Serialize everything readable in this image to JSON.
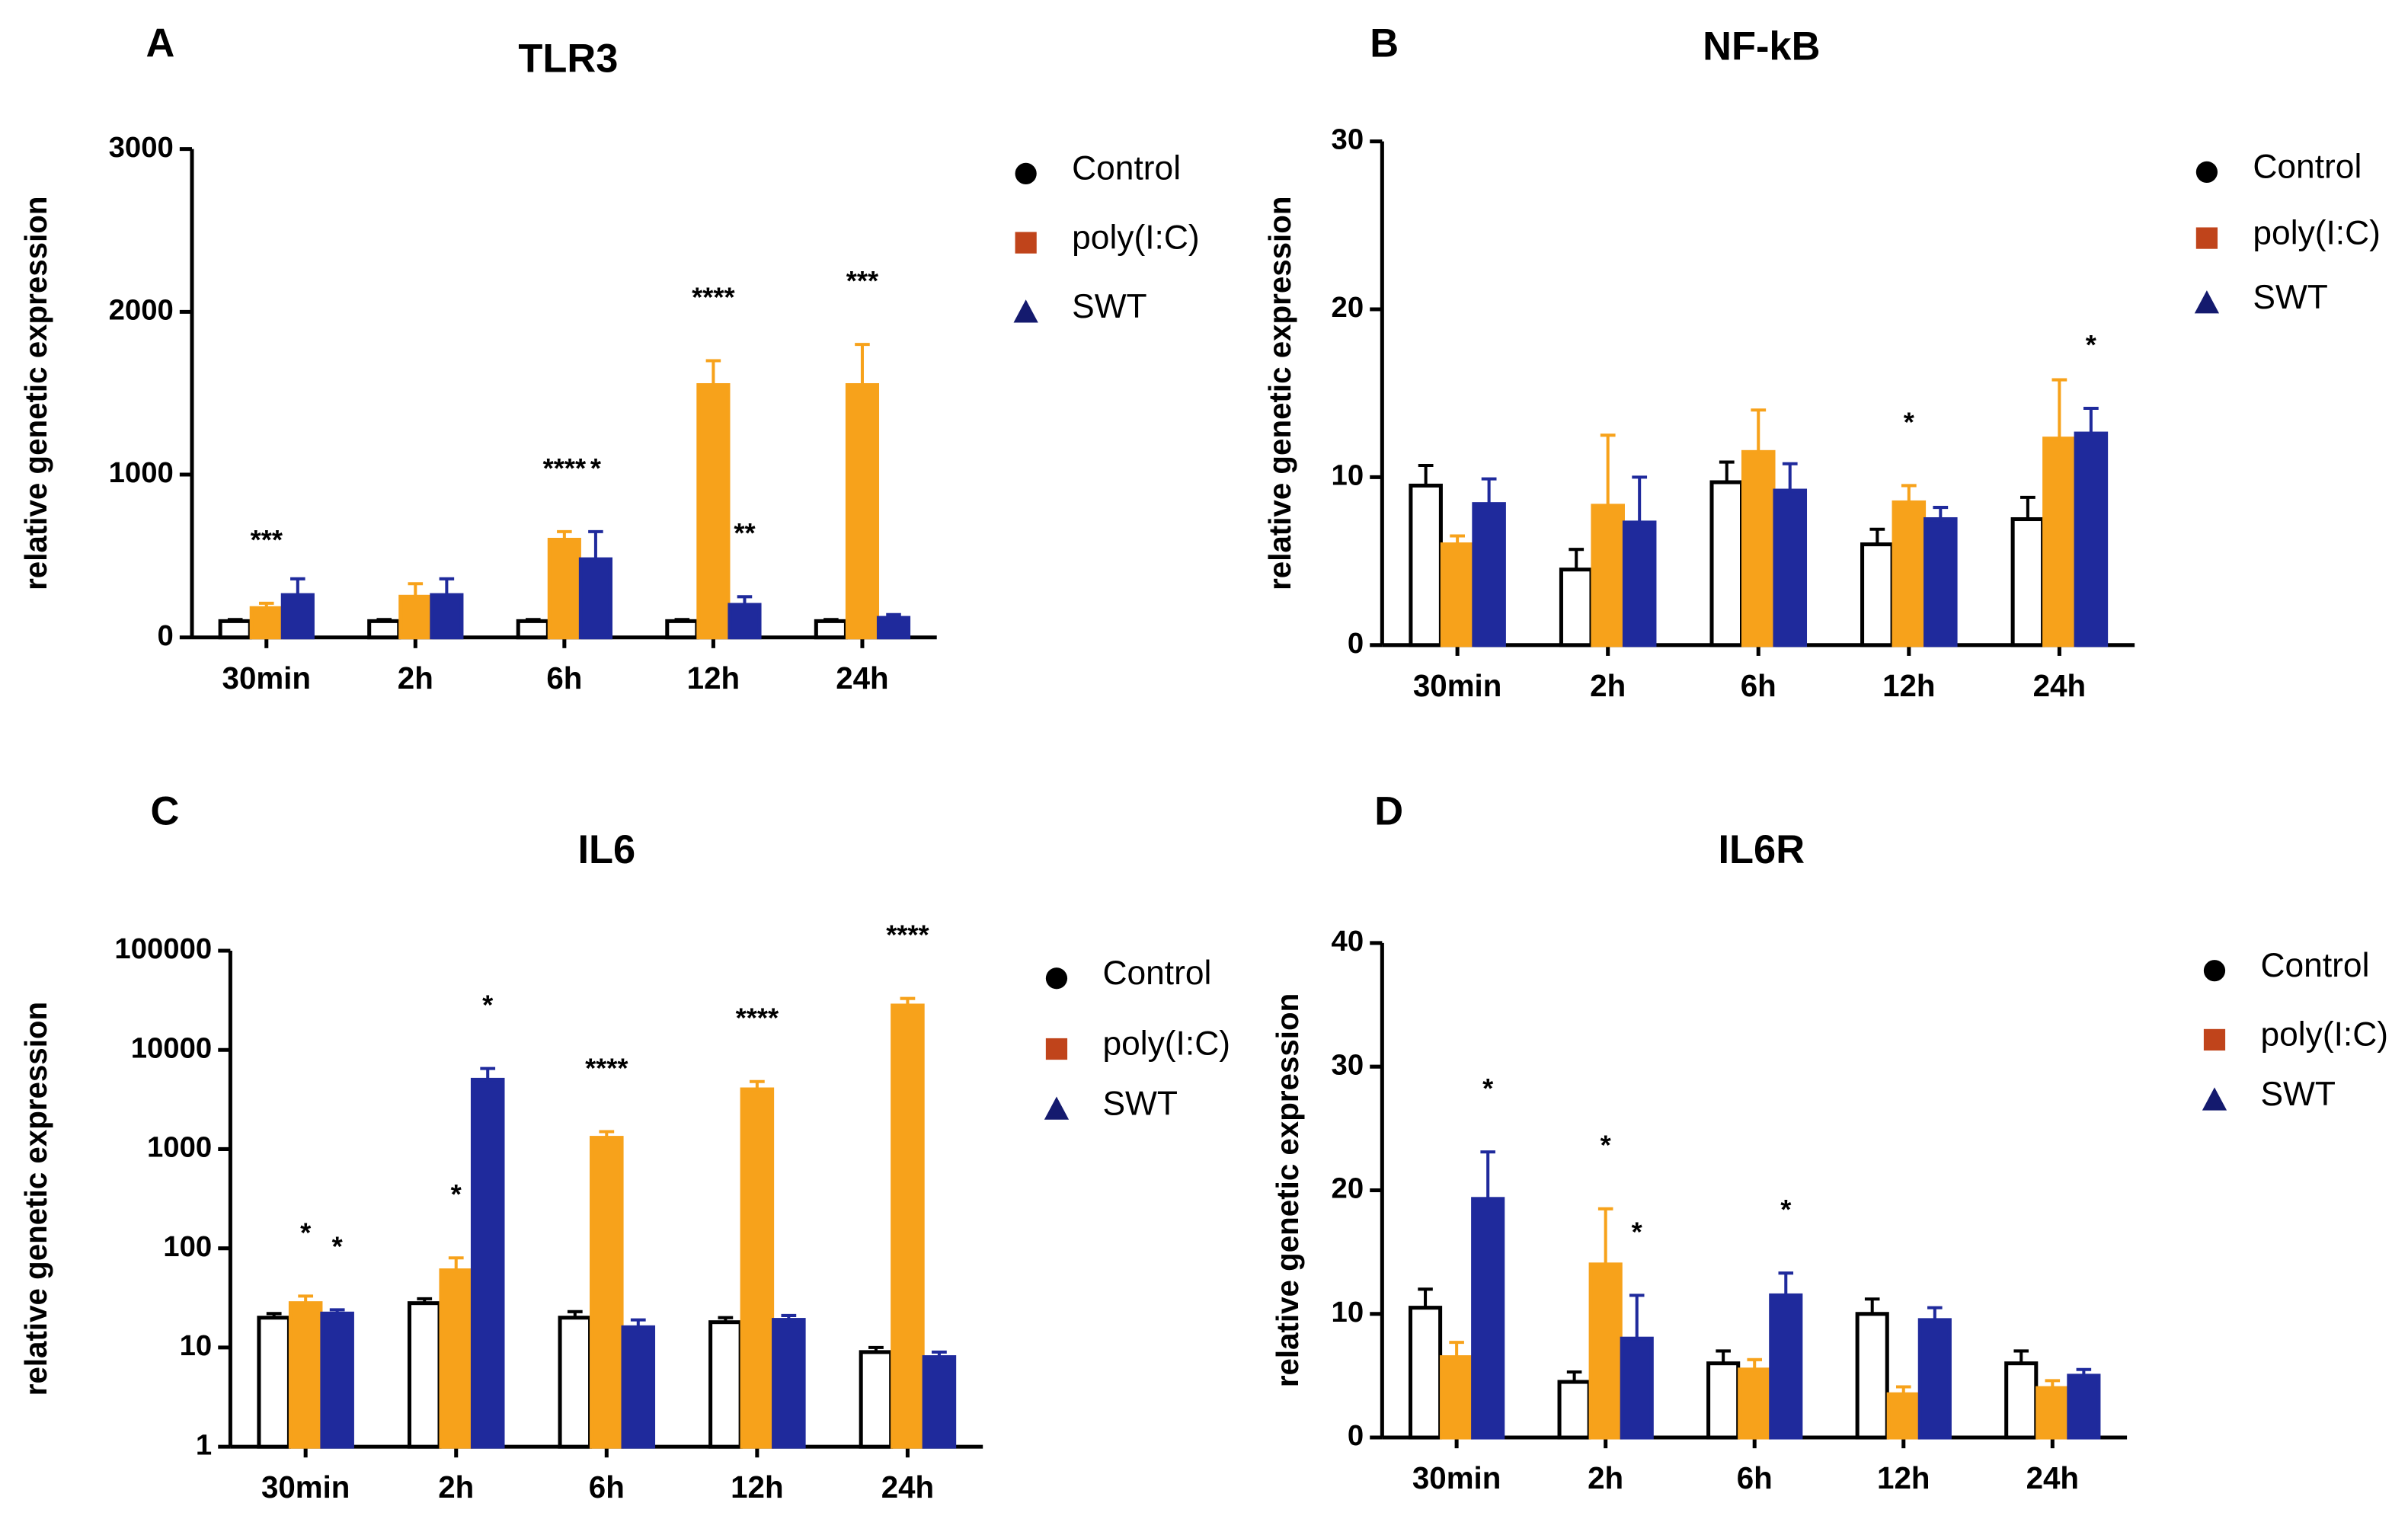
{
  "chart_data": [
    {
      "type": "bar",
      "panel": "A",
      "title": "TLR3",
      "ylabel": "relative genetic expression",
      "categories": [
        "30min",
        "2h",
        "6h",
        "12h",
        "24h"
      ],
      "ylim": [
        0,
        3000
      ],
      "yticks": [
        0,
        1000,
        2000,
        3000
      ],
      "yscale": "linear",
      "series": [
        {
          "name": "Control",
          "color": "#ffffff",
          "edgecolor": "#000000",
          "marker": "circle",
          "marker_color": "#000000",
          "values": [
            100,
            100,
            100,
            100,
            100
          ],
          "errors": [
            10,
            10,
            10,
            10,
            10
          ],
          "significance": [
            null,
            null,
            null,
            null,
            null
          ]
        },
        {
          "name": "poly(I:C)",
          "color": "#f7a21b",
          "edgecolor": "#f7a21b",
          "marker": "square",
          "marker_color": "#c0441b",
          "values": [
            180,
            250,
            600,
            1550,
            1550
          ],
          "errors": [
            30,
            80,
            50,
            150,
            250
          ],
          "significance": [
            "***",
            null,
            "****",
            "****",
            "***"
          ]
        },
        {
          "name": "SWT",
          "color": "#1f2a9c",
          "edgecolor": "#1f2a9c",
          "marker": "triangle",
          "marker_color": "#141a6e",
          "values": [
            260,
            260,
            480,
            200,
            120
          ],
          "errors": [
            100,
            100,
            170,
            50,
            20
          ],
          "significance": [
            null,
            null,
            "*",
            "**",
            null
          ]
        }
      ]
    },
    {
      "type": "bar",
      "panel": "B",
      "title": "NF-kB",
      "ylabel": "relative genetic expression",
      "categories": [
        "30min",
        "2h",
        "6h",
        "12h",
        "24h"
      ],
      "ylim": [
        0,
        30
      ],
      "yticks": [
        0,
        10,
        20,
        30
      ],
      "yscale": "linear",
      "series": [
        {
          "name": "Control",
          "color": "#ffffff",
          "edgecolor": "#000000",
          "marker": "circle",
          "marker_color": "#000000",
          "values": [
            9.5,
            4.5,
            9.7,
            6,
            7.5
          ],
          "errors": [
            1.2,
            1.2,
            1.2,
            0.9,
            1.3
          ],
          "significance": [
            null,
            null,
            null,
            null,
            null
          ]
        },
        {
          "name": "poly(I:C)",
          "color": "#f7a21b",
          "edgecolor": "#f7a21b",
          "marker": "square",
          "marker_color": "#c0441b",
          "values": [
            6,
            8.3,
            11.5,
            8.5,
            12.3
          ],
          "errors": [
            0.5,
            4.2,
            2.5,
            1,
            3.5
          ],
          "significance": [
            null,
            null,
            null,
            "*",
            null
          ]
        },
        {
          "name": "SWT",
          "color": "#1f2a9c",
          "edgecolor": "#1f2a9c",
          "marker": "triangle",
          "marker_color": "#141a6e",
          "values": [
            8.4,
            7.3,
            9.2,
            7.5,
            12.6
          ],
          "errors": [
            1.5,
            2.7,
            1.6,
            0.7,
            1.5
          ],
          "significance": [
            null,
            null,
            null,
            null,
            "*"
          ]
        }
      ]
    },
    {
      "type": "bar",
      "panel": "C",
      "title": "IL6",
      "ylabel": "relative genetic expression",
      "categories": [
        "30min",
        "2h",
        "6h",
        "12h",
        "24h"
      ],
      "ylim": [
        1,
        100000
      ],
      "yticks": [
        1,
        10,
        100,
        1000,
        10000,
        100000
      ],
      "yscale": "log",
      "series": [
        {
          "name": "Control",
          "color": "#ffffff",
          "edgecolor": "#000000",
          "marker": "circle",
          "marker_color": "#000000",
          "values": [
            20,
            28,
            20,
            18,
            9
          ],
          "errors": [
            2,
            3,
            3,
            2,
            1
          ],
          "significance": [
            null,
            null,
            null,
            null,
            null
          ]
        },
        {
          "name": "poly(I:C)",
          "color": "#f7a21b",
          "edgecolor": "#f7a21b",
          "marker": "square",
          "marker_color": "#c0441b",
          "values": [
            28,
            60,
            1300,
            4000,
            28000
          ],
          "errors": [
            5,
            20,
            200,
            800,
            5000
          ],
          "significance": [
            "*",
            "*",
            "****",
            "****",
            "****"
          ]
        },
        {
          "name": "SWT",
          "color": "#1f2a9c",
          "edgecolor": "#1f2a9c",
          "marker": "triangle",
          "marker_color": "#141a6e",
          "values": [
            22,
            5000,
            16,
            19,
            8
          ],
          "errors": [
            2,
            1500,
            3,
            2,
            1
          ],
          "significance": [
            "*",
            "*",
            null,
            null,
            null
          ]
        }
      ]
    },
    {
      "type": "bar",
      "panel": "D",
      "title": "IL6R",
      "ylabel": "relative genetic expression",
      "categories": [
        "30min",
        "2h",
        "6h",
        "12h",
        "24h"
      ],
      "ylim": [
        0,
        40
      ],
      "yticks": [
        0,
        10,
        20,
        30,
        40
      ],
      "yscale": "linear",
      "series": [
        {
          "name": "Control",
          "color": "#ffffff",
          "edgecolor": "#000000",
          "marker": "circle",
          "marker_color": "#000000",
          "values": [
            10.5,
            4.5,
            6,
            10,
            6
          ],
          "errors": [
            1.5,
            0.8,
            1,
            1.2,
            1
          ],
          "significance": [
            null,
            null,
            null,
            null,
            null
          ]
        },
        {
          "name": "poly(I:C)",
          "color": "#f7a21b",
          "edgecolor": "#f7a21b",
          "marker": "square",
          "marker_color": "#c0441b",
          "values": [
            6.5,
            14,
            5.5,
            3.5,
            4
          ],
          "errors": [
            1.2,
            4.5,
            0.8,
            0.6,
            0.6
          ],
          "significance": [
            null,
            "*",
            null,
            null,
            null
          ]
        },
        {
          "name": "SWT",
          "color": "#1f2a9c",
          "edgecolor": "#1f2a9c",
          "marker": "triangle",
          "marker_color": "#141a6e",
          "values": [
            19.3,
            8,
            11.5,
            9.5,
            5
          ],
          "errors": [
            3.8,
            3.5,
            1.8,
            1,
            0.5
          ],
          "significance": [
            "*",
            "*",
            "*",
            null,
            null
          ]
        }
      ]
    }
  ]
}
